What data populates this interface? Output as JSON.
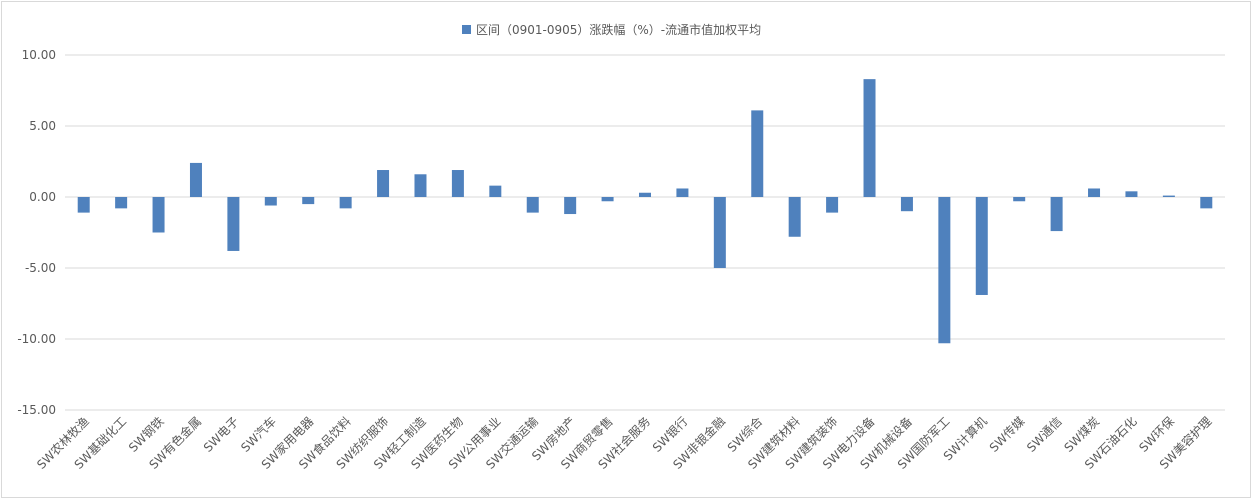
{
  "chart_data": {
    "type": "bar",
    "title": "",
    "xlabel": "",
    "ylabel": "",
    "legend": {
      "entries": [
        "区间（0901-0905）涨跌幅（%）-流通市值加权平均"
      ],
      "placement": "top-center"
    },
    "ylim": [
      -15,
      10
    ],
    "yticks": [
      "10.00",
      "5.00",
      "0.00",
      "-5.00",
      "-10.00",
      "-15.00"
    ],
    "grid": true,
    "bar_color": "#4f81bd",
    "categories": [
      "SW农林牧渔",
      "SW基础化工",
      "SW钢铁",
      "SW有色金属",
      "SW电子",
      "SW汽车",
      "SW家用电器",
      "SW食品饮料",
      "SW纺织服饰",
      "SW轻工制造",
      "SW医药生物",
      "SW公用事业",
      "SW交通运输",
      "SW房地产",
      "SW商贸零售",
      "SW社会服务",
      "SW银行",
      "SW非银金融",
      "SW综合",
      "SW建筑材料",
      "SW建筑装饰",
      "SW电力设备",
      "SW机械设备",
      "SW国防军工",
      "SW计算机",
      "SW传媒",
      "SW通信",
      "SW煤炭",
      "SW石油石化",
      "SW环保",
      "SW美容护理"
    ],
    "series": [
      {
        "name": "区间（0901-0905）涨跌幅（%）-流通市值加权平均",
        "values": [
          -1.1,
          -0.8,
          -2.5,
          2.4,
          -3.8,
          -0.6,
          -0.5,
          -0.8,
          1.9,
          1.6,
          1.9,
          0.8,
          -1.1,
          -1.2,
          -0.3,
          0.3,
          0.6,
          -5.0,
          6.1,
          -2.8,
          -1.1,
          8.3,
          -1.0,
          -10.3,
          -6.9,
          -0.3,
          -2.4,
          0.6,
          0.4,
          0.1,
          -0.8
        ]
      }
    ]
  }
}
